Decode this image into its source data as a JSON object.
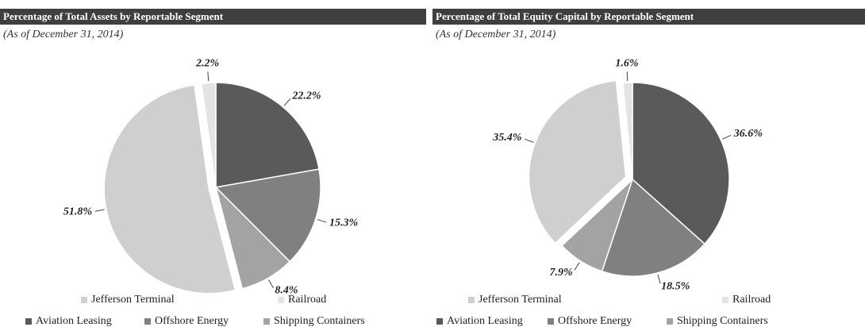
{
  "chart_data": [
    {
      "type": "pie",
      "title": "Percentage of Total Assets by Reportable Segment",
      "subtitle": "(As of December 31, 2014)",
      "categories": [
        "Aviation Leasing",
        "Offshore Energy",
        "Shipping Containers",
        "Jefferson Terminal",
        "Railroad"
      ],
      "values": [
        22.2,
        15.3,
        8.4,
        51.8,
        2.2
      ],
      "value_labels": [
        "22.2%",
        "15.3%",
        "8.4%",
        "51.8%",
        "2.2%"
      ],
      "colors": [
        "#5a5a5a",
        "#808080",
        "#a3a3a3",
        "#cfcfcf",
        "#e4e4e4"
      ],
      "exploded": "Jefferson Terminal"
    },
    {
      "type": "pie",
      "title": "Percentage of Total Equity Capital by Reportable Segment",
      "subtitle": "(As of December 31, 2014)",
      "categories": [
        "Aviation Leasing",
        "Offshore Energy",
        "Shipping Containers",
        "Jefferson Terminal",
        "Railroad"
      ],
      "values": [
        36.6,
        18.5,
        7.9,
        35.4,
        1.6
      ],
      "value_labels": [
        "36.6%",
        "18.5%",
        "7.9%",
        "35.4%",
        "1.6%"
      ],
      "colors": [
        "#5a5a5a",
        "#808080",
        "#a3a3a3",
        "#cfcfcf",
        "#e4e4e4"
      ],
      "exploded": "Jefferson Terminal"
    }
  ]
}
